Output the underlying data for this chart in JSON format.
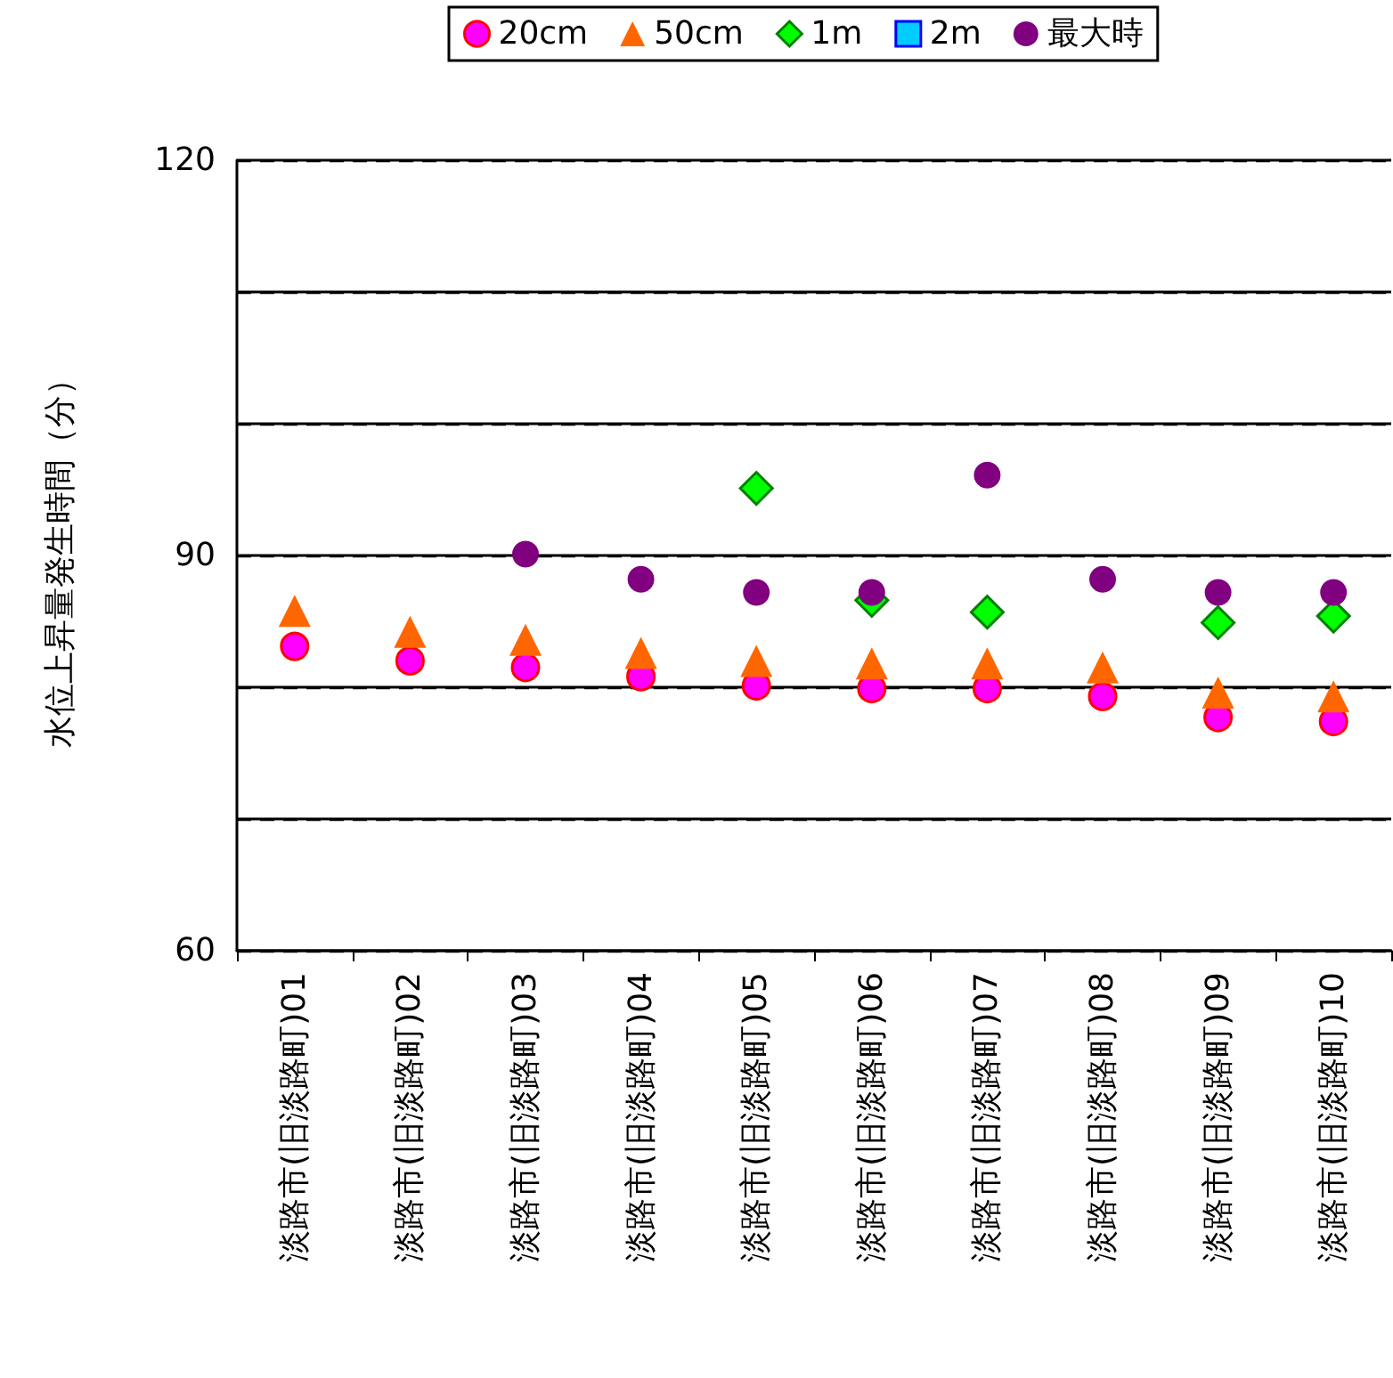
{
  "chart_data": {
    "type": "scatter",
    "ylabel": "水位上昇量発生時間（分）",
    "categories": [
      "淡路市(旧淡路町)01",
      "淡路市(旧淡路町)02",
      "淡路市(旧淡路町)03",
      "淡路市(旧淡路町)04",
      "淡路市(旧淡路町)05",
      "淡路市(旧淡路町)06",
      "淡路市(旧淡路町)07",
      "淡路市(旧淡路町)08",
      "淡路市(旧淡路町)09",
      "淡路市(旧淡路町)10"
    ],
    "series": [
      {
        "name": "20cm",
        "color": "#ff00ff",
        "marker": "circle",
        "values": [
          83.1,
          82.0,
          81.5,
          80.8,
          80.1,
          79.9,
          79.9,
          79.3,
          77.7,
          77.4
        ]
      },
      {
        "name": "50cm",
        "color": "#ff6600",
        "marker": "triangle",
        "values": [
          85.8,
          84.2,
          83.6,
          82.6,
          82.0,
          81.8,
          81.8,
          81.5,
          79.6,
          79.3
        ]
      },
      {
        "name": "1m",
        "color": "#00ff00",
        "marker": "diamond",
        "values": [
          null,
          null,
          null,
          null,
          95.1,
          86.6,
          85.7,
          null,
          84.9,
          85.4
        ]
      },
      {
        "name": "2m",
        "color": "#00ccff",
        "marker": "square",
        "values": [
          null,
          null,
          null,
          null,
          null,
          null,
          null,
          null,
          null,
          null
        ]
      },
      {
        "name": "最大時",
        "color": "#800080",
        "marker": "circle",
        "values": [
          null,
          null,
          90.1,
          88.2,
          87.2,
          87.2,
          96.1,
          88.2,
          87.2,
          87.2
        ]
      }
    ],
    "ylim": [
      60,
      120
    ],
    "yticks": [
      60,
      {
        "value": 70,
        "label": null
      },
      {
        "value": 80,
        "label": null
      },
      90,
      {
        "value": 100,
        "label": null
      },
      {
        "value": 110,
        "label": null
      },
      120
    ],
    "grid": "y",
    "legend": "top"
  }
}
